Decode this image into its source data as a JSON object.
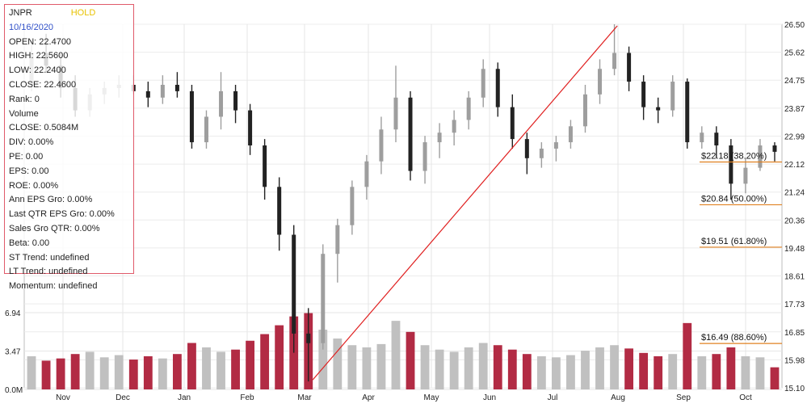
{
  "panel": {
    "ticker": "JNPR",
    "rating": "HOLD",
    "date": "10/16/2020",
    "rows": [
      "OPEN: 22.4700",
      "HIGH: 22.5600",
      "LOW: 22.2400",
      "CLOSE: 22.4600",
      "Rank: 0",
      "Volume",
      "CLOSE: 0.5084M",
      "DIV: 0.00%",
      "PE: 0.00",
      "EPS: 0.00",
      "ROE: 0.00%",
      "Ann EPS Gro: 0.00%",
      "Last QTR EPS Gro: 0.00%",
      "Sales Gro QTR: 0.00%",
      "Beta: 0.00",
      "ST Trend: undefined",
      "LT Trend: undefined",
      "Momentum: undefined"
    ]
  },
  "chart_data": {
    "type": "candlestick",
    "x_labels": [
      "Nov",
      "Dec",
      "Jan",
      "Feb",
      "Mar",
      "Apr",
      "May",
      "Jun",
      "Jul",
      "Aug",
      "Sep",
      "Oct"
    ],
    "price_ticks": [
      "26.50",
      "25.62",
      "24.75",
      "23.87",
      "22.99",
      "22.12",
      "21.24",
      "20.36",
      "19.48",
      "18.61",
      "17.73",
      "16.85",
      "15.98",
      "15.10"
    ],
    "price_range": [
      15.1,
      26.5
    ],
    "volume_ticks": [
      "0.0M",
      "3.47",
      "6.94"
    ],
    "volume_range": [
      0,
      8.4
    ],
    "colors": {
      "up": "#9e9e9e",
      "down": "#222222",
      "vol_up": "#c0c0c0",
      "vol_down": "#b22b44",
      "trend": "#e02020",
      "fib": "#e08020"
    },
    "fib_levels": [
      {
        "price": 22.18,
        "label": "$22.18 (38.20%)"
      },
      {
        "price": 20.84,
        "label": "$20.84 (50.00%)"
      },
      {
        "price": 19.51,
        "label": "$19.51 (61.80%)"
      },
      {
        "price": 16.49,
        "label": "$16.49 (88.60%)"
      }
    ],
    "trendline": {
      "from": {
        "week": 19.3,
        "price": 15.35
      },
      "to": {
        "week": 40.2,
        "price": 26.45
      }
    },
    "weekly": [
      [
        24.6,
        26.0,
        24.4,
        25.6,
        3.0
      ],
      [
        25.6,
        26.2,
        25.0,
        25.2,
        2.6
      ],
      [
        25.2,
        25.6,
        24.2,
        24.5,
        2.8
      ],
      [
        24.5,
        24.9,
        23.6,
        23.8,
        3.2
      ],
      [
        23.8,
        24.5,
        23.6,
        24.3,
        3.4
      ],
      [
        24.3,
        24.7,
        24.0,
        24.5,
        2.9
      ],
      [
        24.5,
        24.9,
        24.2,
        24.6,
        3.1
      ],
      [
        24.6,
        24.9,
        24.3,
        24.4,
        2.7
      ],
      [
        24.4,
        24.7,
        23.9,
        24.2,
        3.0
      ],
      [
        24.2,
        24.9,
        24.0,
        24.6,
        2.8
      ],
      [
        24.6,
        25.0,
        24.2,
        24.4,
        3.2
      ],
      [
        24.4,
        24.6,
        22.6,
        22.8,
        4.2
      ],
      [
        22.8,
        23.8,
        22.6,
        23.6,
        3.8
      ],
      [
        23.6,
        25.0,
        23.2,
        24.4,
        3.4
      ],
      [
        24.4,
        24.6,
        23.4,
        23.8,
        3.6
      ],
      [
        23.8,
        24.0,
        22.4,
        22.7,
        4.4
      ],
      [
        22.7,
        22.9,
        21.0,
        21.4,
        5.0
      ],
      [
        21.4,
        21.7,
        19.4,
        19.9,
        5.8
      ],
      [
        19.9,
        20.2,
        16.2,
        16.8,
        6.6
      ],
      [
        16.8,
        17.6,
        15.3,
        16.5,
        6.9
      ],
      [
        16.5,
        19.6,
        16.3,
        19.3,
        5.4
      ],
      [
        19.3,
        20.4,
        18.4,
        20.2,
        4.6
      ],
      [
        20.2,
        21.6,
        19.9,
        21.4,
        4.0
      ],
      [
        21.4,
        22.4,
        21.0,
        22.2,
        3.8
      ],
      [
        22.2,
        23.6,
        21.8,
        23.2,
        4.1
      ],
      [
        23.2,
        25.2,
        22.8,
        24.2,
        6.2
      ],
      [
        24.2,
        24.4,
        21.6,
        21.9,
        5.2
      ],
      [
        21.9,
        23.0,
        21.5,
        22.8,
        4.0
      ],
      [
        22.8,
        23.4,
        22.3,
        23.1,
        3.6
      ],
      [
        23.1,
        23.8,
        22.7,
        23.5,
        3.4
      ],
      [
        23.5,
        24.4,
        23.2,
        24.2,
        3.8
      ],
      [
        24.2,
        25.4,
        23.9,
        25.1,
        4.2
      ],
      [
        25.1,
        25.3,
        23.6,
        23.9,
        4.0
      ],
      [
        23.9,
        24.3,
        22.6,
        22.9,
        3.6
      ],
      [
        22.9,
        23.1,
        21.8,
        22.3,
        3.2
      ],
      [
        22.3,
        22.8,
        22.0,
        22.6,
        3.0
      ],
      [
        22.6,
        23.0,
        22.2,
        22.8,
        2.9
      ],
      [
        22.8,
        23.5,
        22.6,
        23.3,
        3.1
      ],
      [
        23.3,
        24.6,
        23.1,
        24.3,
        3.5
      ],
      [
        24.3,
        25.4,
        24.0,
        25.1,
        3.8
      ],
      [
        25.1,
        26.5,
        24.9,
        25.6,
        4.0
      ],
      [
        25.6,
        25.8,
        24.4,
        24.7,
        3.7
      ],
      [
        24.7,
        24.9,
        23.5,
        23.9,
        3.3
      ],
      [
        23.9,
        24.2,
        23.4,
        23.8,
        3.0
      ],
      [
        23.8,
        24.9,
        23.6,
        24.7,
        3.2
      ],
      [
        24.7,
        24.8,
        22.6,
        22.8,
        6.0
      ],
      [
        22.8,
        23.3,
        22.6,
        23.1,
        3.0
      ],
      [
        23.1,
        23.3,
        22.3,
        22.7,
        3.2
      ],
      [
        22.7,
        22.9,
        21.0,
        21.5,
        3.8
      ],
      [
        21.5,
        22.3,
        21.2,
        22.0,
        3.0
      ],
      [
        22.0,
        22.9,
        21.9,
        22.7,
        2.9
      ],
      [
        22.7,
        22.8,
        22.2,
        22.5,
        2.0
      ]
    ]
  }
}
